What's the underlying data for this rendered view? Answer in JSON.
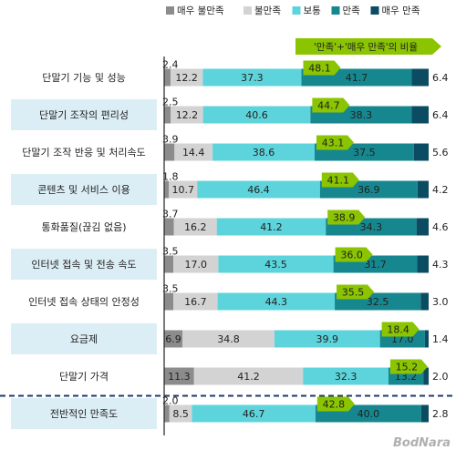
{
  "chart_data": {
    "type": "bar",
    "orientation": "horizontal",
    "stacked": true,
    "xlim": [
      0,
      100
    ],
    "categories": [
      "단말기 기능 및 성능",
      "단말기 조작의 편리성",
      "단말기 조작 반응 및 처리속도",
      "콘텐츠 및 서비스 이용",
      "통화품질(끊김 없음)",
      "인터넷 접속 및 전송 속도",
      "인터넷 접속 상태의 안정성",
      "요금제",
      "단말기 가격",
      "전반적인 만족도"
    ],
    "highlighted_categories": [
      1,
      3,
      5,
      7,
      9
    ],
    "series": [
      {
        "name": "매우 불만족",
        "values": [
          2.4,
          2.5,
          3.9,
          1.8,
          3.7,
          3.5,
          3.5,
          6.9,
          11.3,
          2.0
        ]
      },
      {
        "name": "불만족",
        "values": [
          12.2,
          12.2,
          14.4,
          10.7,
          16.2,
          17.0,
          16.7,
          34.8,
          41.2,
          8.5
        ]
      },
      {
        "name": "보통",
        "values": [
          37.3,
          40.6,
          38.6,
          46.4,
          41.2,
          43.5,
          44.3,
          39.9,
          32.3,
          46.7
        ]
      },
      {
        "name": "만족",
        "values": [
          41.7,
          38.3,
          37.5,
          36.9,
          34.3,
          31.7,
          32.5,
          17.0,
          13.2,
          40.0
        ]
      },
      {
        "name": "매우 만족",
        "values": [
          6.4,
          6.4,
          5.6,
          4.2,
          4.6,
          4.3,
          3.0,
          1.4,
          2.0,
          2.8
        ]
      }
    ],
    "combined_label": "'만족'+'매우 만족'의 비율",
    "combined_values": [
      48.1,
      44.7,
      43.1,
      41.1,
      38.9,
      36.0,
      35.5,
      18.4,
      15.2,
      42.8
    ],
    "separator_before_category": 9,
    "legend_position": "top-right",
    "colors": {
      "매우 불만족": "#8c8c8c",
      "불만족": "#d3d3d3",
      "보통": "#5dd4dc",
      "만족": "#16878f",
      "매우 만족": "#0b4c63",
      "highlight_row": "#dceef5",
      "callout": "#8bc400",
      "separator": "#1f3a6b",
      "axis": "#222222"
    }
  },
  "watermark": "BodNara"
}
